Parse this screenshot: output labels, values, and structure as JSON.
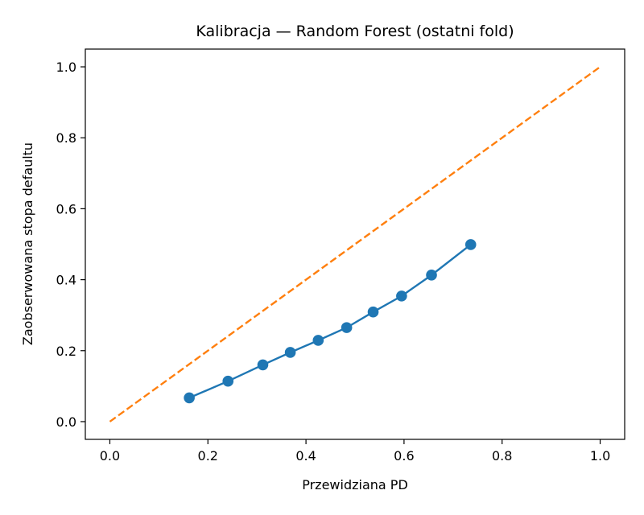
{
  "chart_data": {
    "type": "line",
    "title": "Kalibracja — Random Forest (ostatni fold)",
    "xlabel": "Przewidziana PD",
    "ylabel": "Zaobserwowana stopa defaultu",
    "xlim": [
      -0.05,
      1.05
    ],
    "ylim": [
      -0.05,
      1.05
    ],
    "xticks": [
      "0.0",
      "0.2",
      "0.4",
      "0.6",
      "0.8",
      "1.0"
    ],
    "yticks": [
      "0.0",
      "0.2",
      "0.4",
      "0.6",
      "0.8",
      "1.0"
    ],
    "grid": false,
    "series": [
      {
        "name": "",
        "color": "#1f77b4",
        "style": "solid-markers",
        "x": [
          0.162,
          0.241,
          0.312,
          0.368,
          0.425,
          0.483,
          0.537,
          0.595,
          0.656,
          0.736
        ],
        "y": [
          0.067,
          0.114,
          0.16,
          0.195,
          0.229,
          0.265,
          0.309,
          0.354,
          0.413,
          0.499
        ]
      },
      {
        "name": "",
        "color": "#ff7f0e",
        "style": "dashed",
        "x": [
          0.0,
          1.0
        ],
        "y": [
          0.0,
          1.0
        ]
      }
    ]
  }
}
